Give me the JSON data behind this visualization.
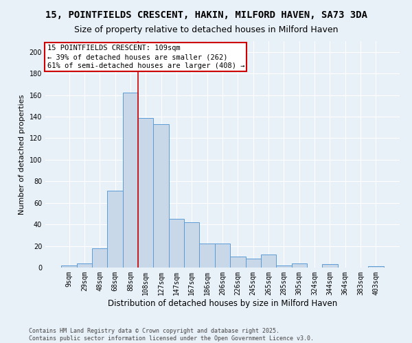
{
  "title": "15, POINTFIELDS CRESCENT, HAKIN, MILFORD HAVEN, SA73 3DA",
  "subtitle": "Size of property relative to detached houses in Milford Haven",
  "xlabel": "Distribution of detached houses by size in Milford Haven",
  "ylabel": "Number of detached properties",
  "bar_color": "#c8d8e8",
  "bar_edge_color": "#5b9bd5",
  "background_color": "#e8f0f8",
  "grid_color": "#ffffff",
  "categories": [
    "9sqm",
    "29sqm",
    "48sqm",
    "68sqm",
    "88sqm",
    "108sqm",
    "127sqm",
    "147sqm",
    "167sqm",
    "186sqm",
    "206sqm",
    "226sqm",
    "245sqm",
    "265sqm",
    "285sqm",
    "305sqm",
    "324sqm",
    "344sqm",
    "364sqm",
    "383sqm",
    "403sqm"
  ],
  "values": [
    2,
    4,
    18,
    71,
    162,
    139,
    133,
    45,
    42,
    22,
    22,
    10,
    8,
    12,
    2,
    4,
    0,
    3,
    0,
    0,
    1
  ],
  "ylim": [
    0,
    210
  ],
  "yticks": [
    0,
    20,
    40,
    60,
    80,
    100,
    120,
    140,
    160,
    180,
    200
  ],
  "vline_x_index": 5,
  "vline_color": "#cc0000",
  "annotation_text": "15 POINTFIELDS CRESCENT: 109sqm\n← 39% of detached houses are smaller (262)\n61% of semi-detached houses are larger (408) →",
  "annotation_box_color": "#ffffff",
  "annotation_box_edge": "#cc0000",
  "footer": "Contains HM Land Registry data © Crown copyright and database right 2025.\nContains public sector information licensed under the Open Government Licence v3.0.",
  "title_fontsize": 10,
  "subtitle_fontsize": 9,
  "annotation_fontsize": 7.5,
  "tick_fontsize": 7,
  "ylabel_fontsize": 8,
  "xlabel_fontsize": 8.5
}
